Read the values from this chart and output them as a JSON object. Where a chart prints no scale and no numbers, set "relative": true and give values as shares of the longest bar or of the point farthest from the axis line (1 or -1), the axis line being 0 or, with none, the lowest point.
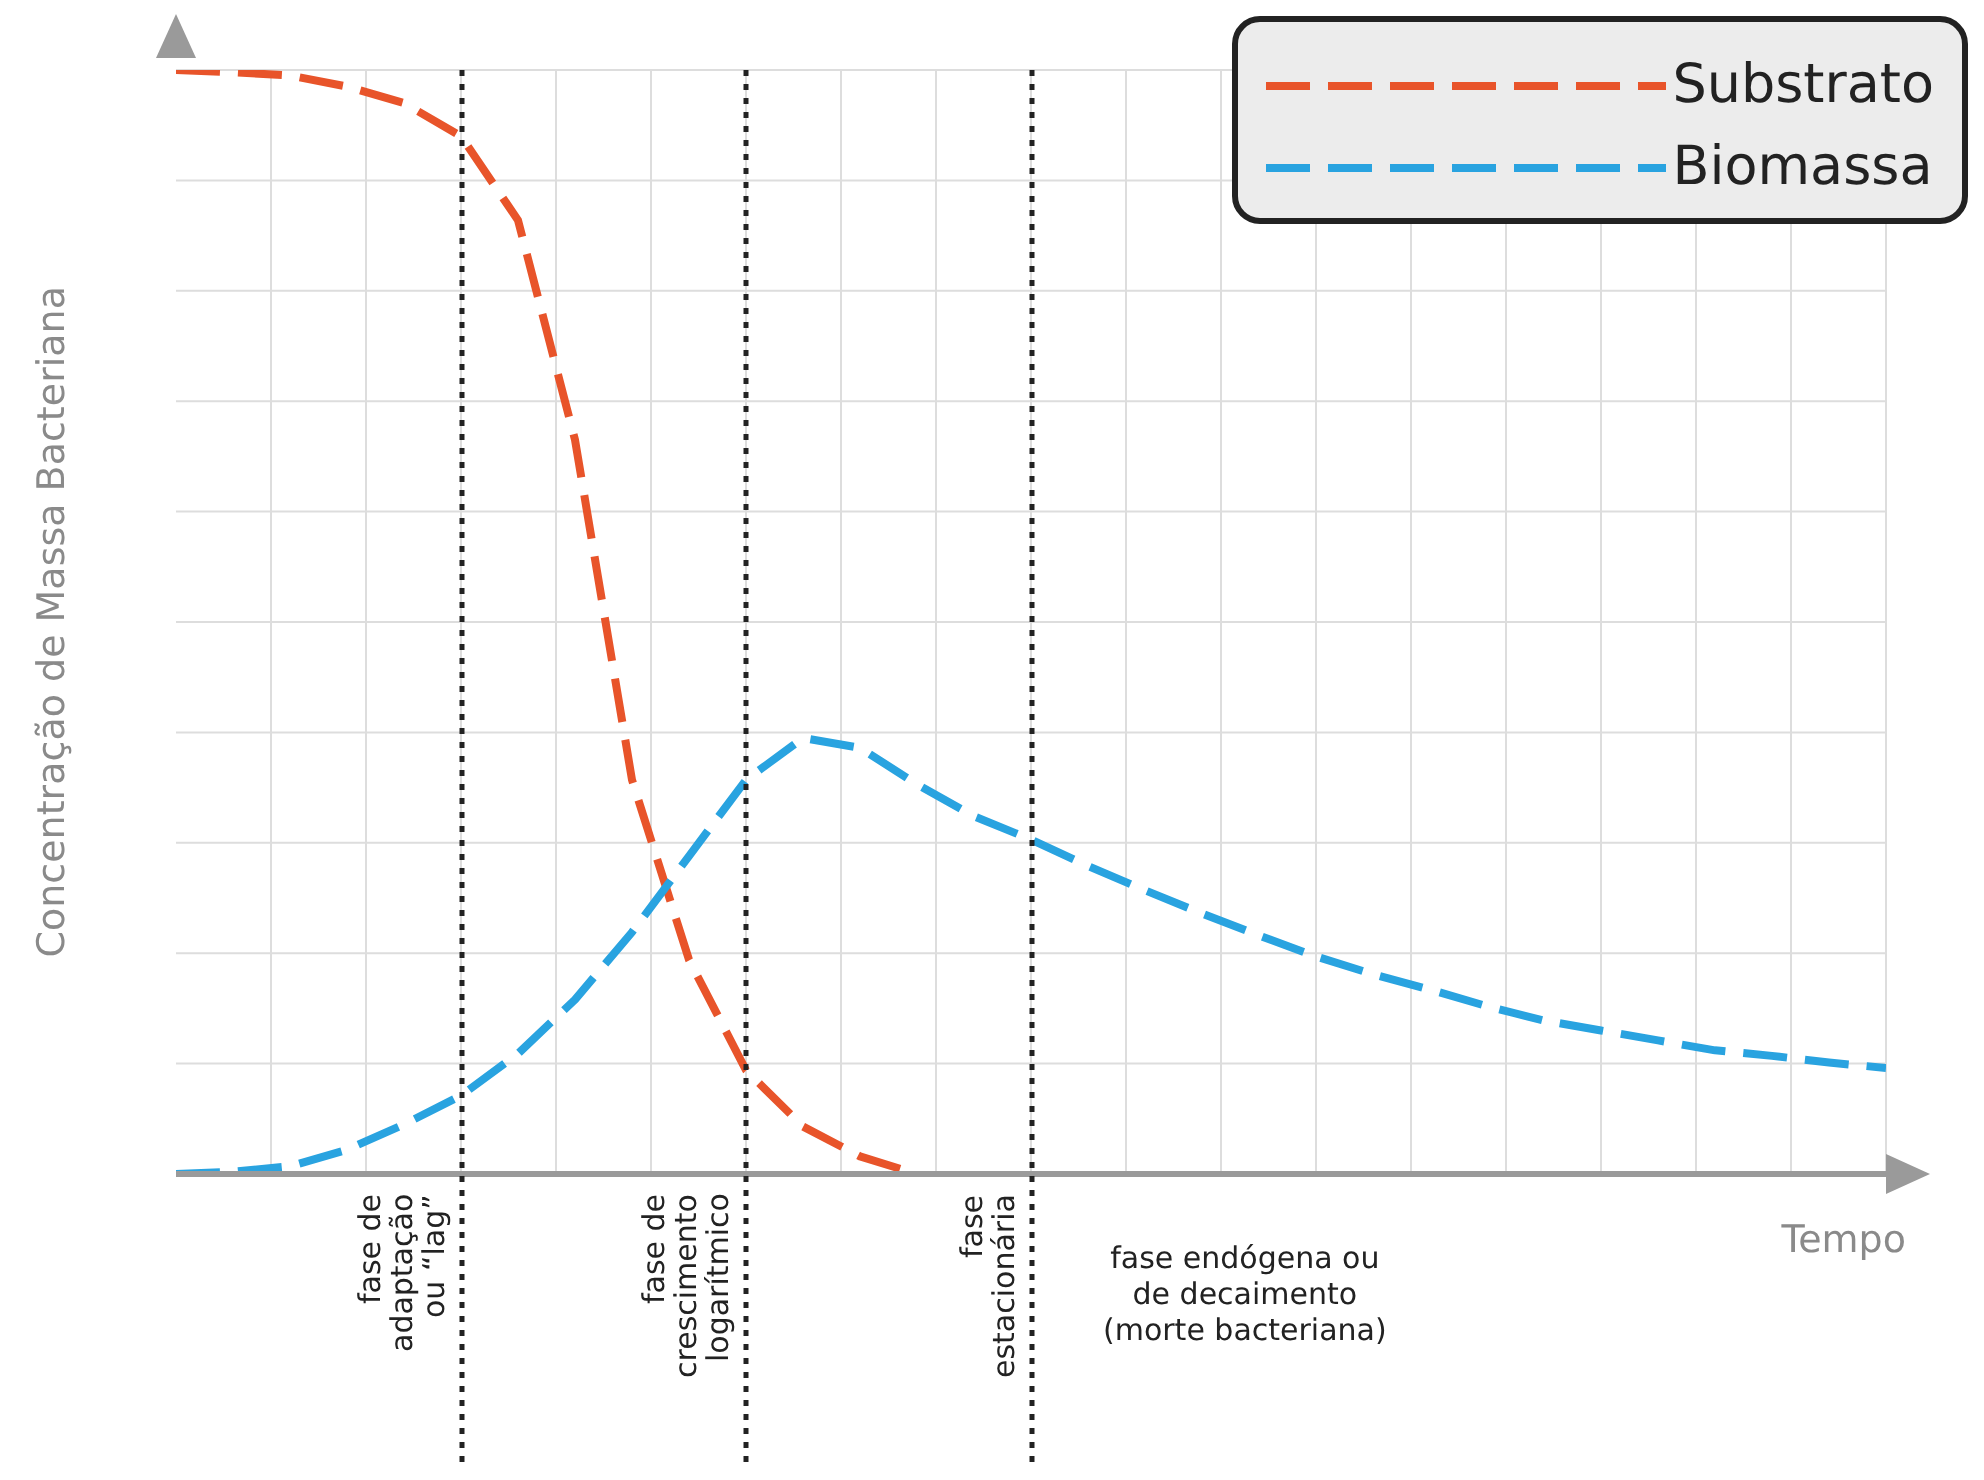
{
  "chart_data": {
    "type": "line",
    "relative": true,
    "xlabel": "Tempo",
    "ylabel": "Concentração de Massa Bacteriana",
    "categories": [
      null,
      null,
      null,
      null,
      null,
      null,
      null,
      null,
      null,
      null,
      null,
      null,
      null,
      null,
      null,
      null,
      null,
      null,
      null,
      null,
      null,
      null,
      null,
      null,
      null,
      null,
      null,
      null,
      null,
      null,
      null
    ],
    "series": [
      {
        "name": "Substrato",
        "color": "#e8542a",
        "line_style": "dashed",
        "values": [
          1.0,
          0.998,
          0.995,
          0.985,
          0.97,
          0.94,
          0.864,
          0.665,
          0.357,
          0.194,
          0.094,
          0.043,
          0.016,
          0.0,
          null,
          null,
          null,
          null,
          null,
          null,
          null,
          null,
          null,
          null,
          null,
          null,
          null,
          null,
          null,
          null,
          null
        ]
      },
      {
        "name": "Biomassa",
        "color": "#29a3e0",
        "line_style": "dashed",
        "values": [
          0.0,
          0.002,
          0.007,
          0.022,
          0.045,
          0.071,
          0.109,
          0.158,
          0.219,
          0.288,
          0.357,
          0.395,
          0.386,
          0.353,
          0.324,
          0.303,
          0.279,
          0.257,
          0.236,
          0.216,
          0.197,
          0.181,
          0.167,
          0.152,
          0.139,
          0.13,
          0.121,
          0.112,
          0.107,
          0.101,
          0.096
        ]
      }
    ],
    "annotations": [
      "fase de\nadaptação\nou “lag”",
      "fase de\ncrescimento\nlogarítmico",
      "fase\nestacionária",
      "fase endógena ou\nde decaimento\n(morte bacteriana)"
    ],
    "grid": true,
    "legend": "top right"
  }
}
